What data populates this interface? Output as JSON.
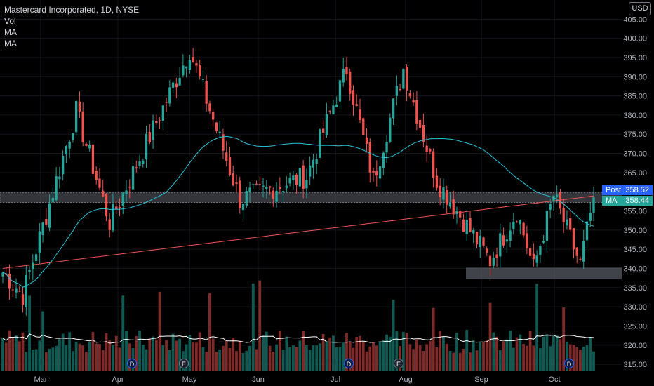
{
  "legend": {
    "title": "Mastercard Incorporated, 1D, NYSE",
    "vol": "Vol",
    "ma1": "MA",
    "ma2": "MA"
  },
  "currency_button": "USD",
  "price_tags": {
    "post_label": "Post",
    "post_value": "358.52",
    "ma_label": "MA",
    "ma_value": "358.44"
  },
  "events": [
    {
      "type": "D",
      "label": "D",
      "name": "dividend-marker-1"
    },
    {
      "type": "E",
      "label": "E",
      "name": "earnings-marker-1"
    },
    {
      "type": "D",
      "label": "D",
      "name": "dividend-marker-2"
    },
    {
      "type": "E",
      "label": "E",
      "name": "earnings-marker-2"
    },
    {
      "type": "D",
      "label": "D",
      "name": "dividend-marker-3"
    }
  ],
  "colors": {
    "up": "#26a69a",
    "down": "#ef5350",
    "ma_short": "#26c6da",
    "ma_long": "#ef5350",
    "vol_ma": "#ffffff",
    "zone": "#5d606b"
  },
  "chart_data": {
    "type": "candlestick",
    "symbol": "Mastercard Incorporated",
    "interval": "1D",
    "exchange": "NYSE",
    "ylim": [
      313,
      410
    ],
    "y_ticks": [
      315,
      320,
      325,
      330,
      335,
      340,
      345,
      350,
      355,
      360,
      365,
      370,
      375,
      380,
      385,
      390,
      395,
      400,
      405
    ],
    "x_ticks": [
      "Mar",
      "Apr",
      "May",
      "Jun",
      "Jul",
      "Aug",
      "Sep",
      "Oct"
    ],
    "last_price": 358.52,
    "ma_value": 358.44,
    "zones": [
      {
        "from_month": "Feb",
        "to_month": "Oct",
        "low": 357.2,
        "high": 359.8
      },
      {
        "from_month": "Sep",
        "to_month": "Oct",
        "low": 337.2,
        "high": 340.2
      }
    ],
    "segments": [
      {
        "start": 340,
        "end": 333,
        "days": 7
      },
      {
        "start": 333,
        "end": 381,
        "days": 16
      },
      {
        "start": 381,
        "end": 352,
        "days": 10
      },
      {
        "start": 352,
        "end": 380,
        "days": 15
      },
      {
        "start": 380,
        "end": 397,
        "days": 9
      },
      {
        "start": 397,
        "end": 358,
        "days": 15
      },
      {
        "start": 358,
        "end": 364,
        "days": 20
      },
      {
        "start": 364,
        "end": 392,
        "days": 12
      },
      {
        "start": 392,
        "end": 363,
        "days": 8
      },
      {
        "start": 363,
        "end": 392,
        "days": 9
      },
      {
        "start": 392,
        "end": 363,
        "days": 10
      },
      {
        "start": 363,
        "end": 342,
        "days": 16
      },
      {
        "start": 342,
        "end": 355,
        "days": 8
      },
      {
        "start": 355,
        "end": 340,
        "days": 5
      },
      {
        "start": 340,
        "end": 359,
        "days": 6
      },
      {
        "start": 359,
        "end": 341,
        "days": 8
      },
      {
        "start": 341,
        "end": 358.5,
        "days": 4
      }
    ],
    "volume_ylim": [
      0,
      16
    ]
  }
}
